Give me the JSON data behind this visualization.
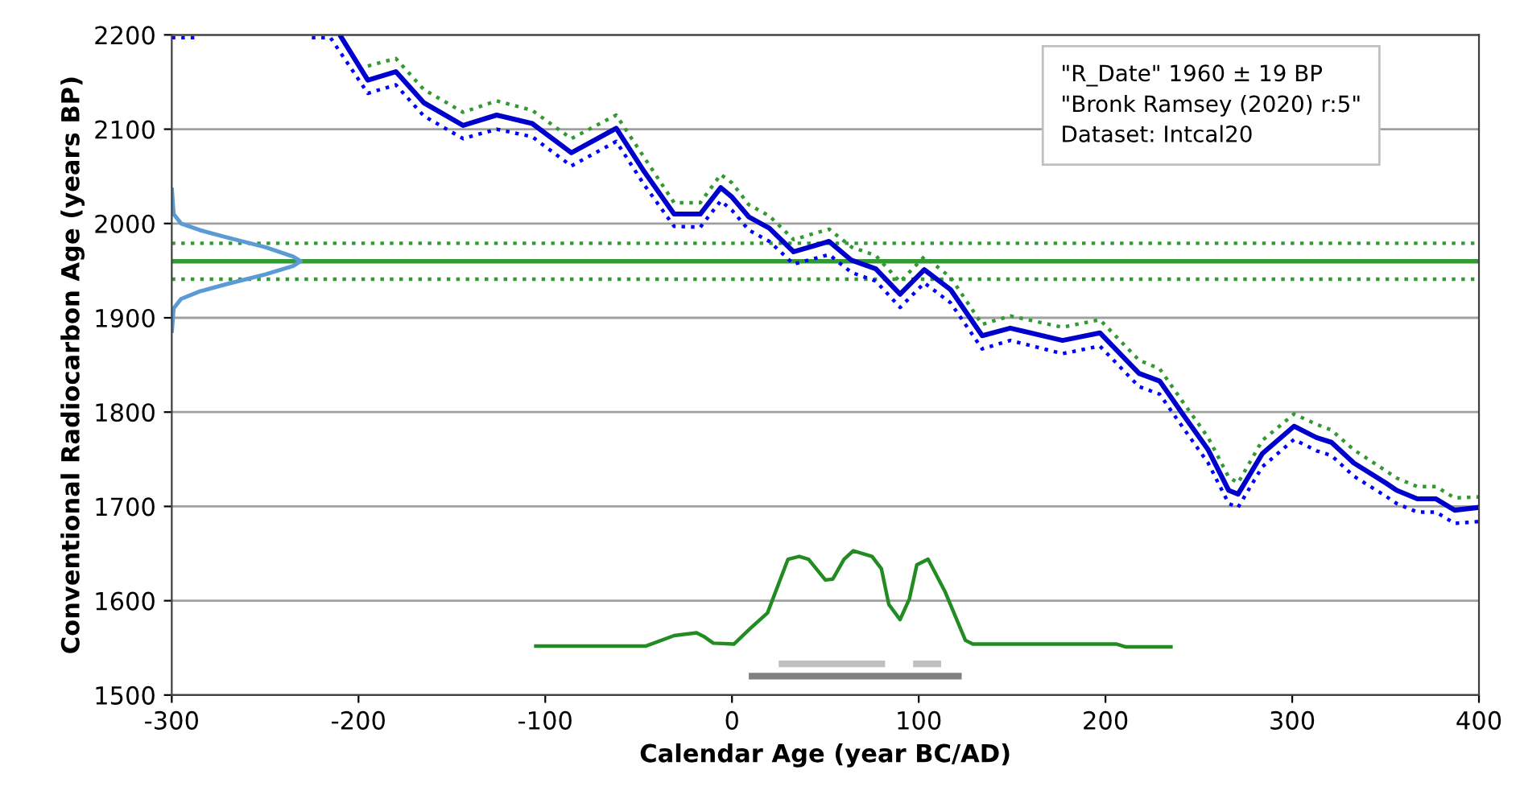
{
  "chart_data": {
    "type": "line",
    "xlabel": "Calendar Age (year BC/AD)",
    "ylabel": "Conventional Radiocarbon Age (years BP)",
    "annotations": [
      "\"R_Date\" 1960 ± 19 BP",
      "\"Bronk Ramsey (2020) r:5\"",
      "Dataset: Intcal20"
    ],
    "x": [
      -210,
      -195,
      -180,
      -165,
      -144,
      -126,
      -107,
      -86,
      -62,
      -47,
      -31,
      -17,
      -6,
      0,
      9,
      20,
      33,
      52,
      64,
      77,
      90,
      103,
      117,
      134,
      149,
      177,
      197,
      218,
      229,
      241,
      255,
      266,
      271,
      284,
      301,
      313,
      321,
      333,
      350,
      356,
      367,
      377,
      387,
      400
    ],
    "series": [
      {
        "color": "#0000cc",
        "line_style": "solid",
        "values": [
          2200,
          2152,
          2161,
          2128,
          2104,
          2115,
          2106,
          2075,
          2101,
          2055,
          2010,
          2010,
          2038,
          2028,
          2007,
          1995,
          1970,
          1981,
          1961,
          1952,
          1925,
          1951,
          1930,
          1881,
          1889,
          1876,
          1884,
          1841,
          1833,
          1799,
          1760,
          1717,
          1713,
          1756,
          1785,
          1773,
          1768,
          1746,
          1725,
          1717,
          1708,
          1708,
          1696,
          1699
        ]
      },
      {
        "color": "#339933",
        "line_style": "dotted",
        "values": [
          null,
          2167,
          2175,
          2142,
          2118,
          2130,
          2120,
          2090,
          2115,
          2070,
          2022,
          2022,
          2052,
          2043,
          2020,
          2008,
          1983,
          1994,
          1975,
          1966,
          1938,
          1965,
          1943,
          1893,
          1902,
          1890,
          1898,
          1855,
          1846,
          1812,
          1773,
          1731,
          1725,
          1770,
          1798,
          1787,
          1781,
          1760,
          1738,
          1730,
          1721,
          1721,
          1709,
          1710
        ]
      },
      {
        "color": "#0000ff",
        "line_style": "dotted",
        "x": [
          -300,
          -287,
          -280,
          -225,
          -215,
          -195,
          -180,
          -165,
          -144,
          -126,
          -107,
          -86,
          -62,
          -47,
          -31,
          -17,
          -6,
          0,
          9,
          20,
          33,
          52,
          64,
          77,
          90,
          103,
          117,
          134,
          149,
          177,
          197,
          218,
          229,
          241,
          255,
          266,
          271,
          284,
          301,
          313,
          321,
          333,
          350,
          356,
          367,
          377,
          387,
          400
        ],
        "values": [
          2197,
          2197,
          null,
          2197,
          2197,
          2138,
          2147,
          2114,
          2090,
          2100,
          2092,
          2061,
          2087,
          2041,
          1997,
          1996,
          2024,
          2014,
          1993,
          1981,
          1957,
          1967,
          1948,
          1939,
          1911,
          1937,
          1916,
          1867,
          1876,
          1862,
          1870,
          1827,
          1819,
          1785,
          1746,
          1703,
          1699,
          1742,
          1771,
          1759,
          1754,
          1732,
          1711,
          1703,
          1694,
          1694,
          1682,
          1684
        ]
      },
      {
        "color": "#5b9bd5",
        "line_style": "solid",
        "x": [
          -300,
          -299,
          -295,
          -285,
          -270,
          -250,
          -235,
          -231,
          -235,
          -250,
          -270,
          -285,
          -295,
          -299,
          -300
        ],
        "values": [
          2038,
          2010,
          2000,
          1993,
          1985,
          1975,
          1965,
          1960,
          1955,
          1946,
          1936,
          1928,
          1920,
          1910,
          1884
        ]
      },
      {
        "color": "#228b22",
        "line_style": "solid",
        "x": [
          -106,
          -46,
          -31,
          -19,
          -15,
          -10,
          1,
          10,
          19,
          30,
          36,
          41,
          50,
          54,
          60,
          65,
          75,
          80,
          84,
          90,
          95,
          99,
          105,
          114,
          125,
          129,
          206,
          211,
          236
        ],
        "values": [
          1552,
          1552,
          1563,
          1566,
          1562,
          1555,
          1554,
          1571,
          1587,
          1644,
          1647,
          1644,
          1622,
          1623,
          1644,
          1653,
          1647,
          1634,
          1596,
          1580,
          1602,
          1638,
          1644,
          1610,
          1558,
          1554,
          1554,
          1551,
          1551
        ]
      },
      {
        "color": "#bfbfbf",
        "line_style": "solid",
        "x": [
          25,
          82,
          89,
          97,
          112
        ],
        "values": [
          1533,
          1533,
          null,
          1533,
          1533
        ]
      },
      {
        "color": "#808080",
        "line_style": "solid",
        "x": [
          9,
          123
        ],
        "values": [
          1520,
          1520
        ]
      }
    ],
    "ref_lines": [
      {
        "axis": "y",
        "value": 1960,
        "color": "#339933",
        "line_style": "solid"
      },
      {
        "axis": "y",
        "value": 1979,
        "color": "#339933",
        "line_style": "dotted"
      },
      {
        "axis": "y",
        "value": 1941,
        "color": "#339933",
        "line_style": "dotted"
      }
    ],
    "xlim": [
      -300,
      400
    ],
    "xticks": [
      -300,
      -200,
      -100,
      0,
      100,
      200,
      300,
      400
    ],
    "ylim": [
      1500,
      2200
    ],
    "yticks": [
      1500,
      1600,
      1700,
      1800,
      1900,
      2000,
      2100,
      2200
    ],
    "grid": "y",
    "legend": false
  }
}
